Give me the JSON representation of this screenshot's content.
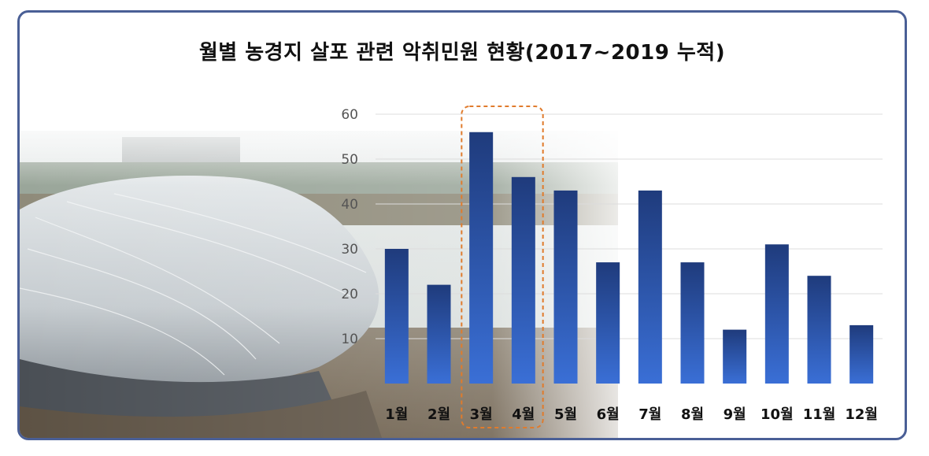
{
  "chart_data": {
    "type": "bar",
    "title": "월별 농경지 살포 관련 악취민원 현황(2017~2019 누적)",
    "xlabel": "",
    "ylabel": "",
    "categories": [
      "1월",
      "2월",
      "3월",
      "4월",
      "5월",
      "6월",
      "7월",
      "8월",
      "9월",
      "10월",
      "11월",
      "12월"
    ],
    "values": [
      30,
      22,
      56,
      46,
      43,
      27,
      43,
      27,
      12,
      31,
      24,
      13
    ],
    "ylim": [
      0,
      60
    ],
    "yticks": [
      10,
      20,
      30,
      40,
      50,
      60
    ],
    "grid": true,
    "highlight_categories": [
      "3월",
      "4월"
    ],
    "colors": {
      "bar_top": "#1f3b7c",
      "bar_bottom": "#3a6fd6",
      "highlight_box": "#e07b2c",
      "border": "#4a5f96"
    }
  }
}
